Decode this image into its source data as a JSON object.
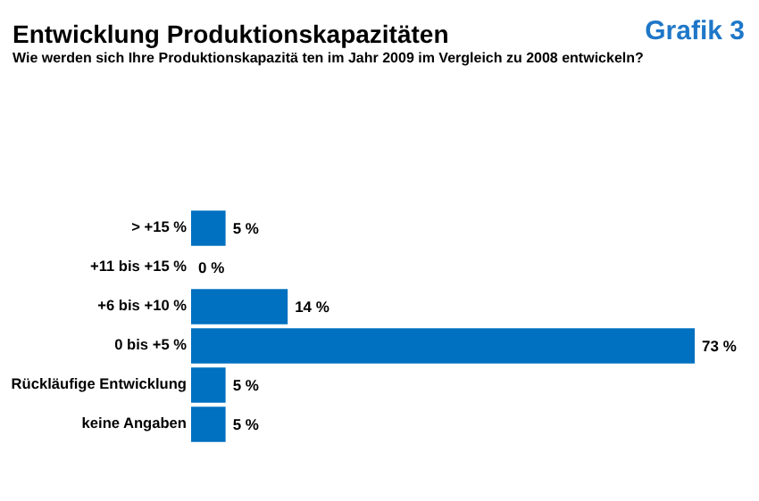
{
  "chart_data": {
    "type": "bar",
    "orientation": "horizontal",
    "title": "Entwicklung Produktionskapazitäten",
    "subtitle": "Wie werden sich Ihre Produktionskapazitä ten im Jahr 2009 im Vergleich zu 2008 entwickeln?",
    "annotations": [
      "Grafik 3"
    ],
    "categories": [
      "> +15 %",
      "+11 bis +15 %",
      "+6 bis +10 %",
      "0 bis +5 %",
      "Rückläufige Entwicklung",
      "keine Angaben"
    ],
    "values": [
      5,
      0,
      14,
      73,
      5,
      5
    ],
    "color": "#0070c0",
    "value_labels": [
      "5 %",
      "0 %",
      "14 %",
      "73 %",
      "5 %",
      "5 %"
    ],
    "grid": false
  }
}
